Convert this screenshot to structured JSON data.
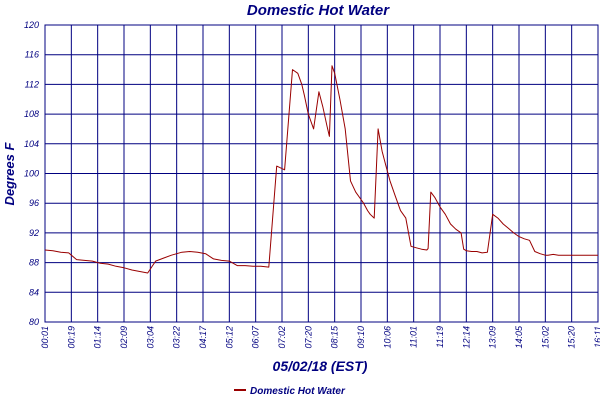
{
  "chart_data": {
    "type": "line",
    "title": "Domestic Hot Water",
    "xlabel": "05/02/18 (EST)",
    "ylabel": "Degrees F",
    "ylim": [
      80,
      120
    ],
    "y_ticks": [
      80,
      84,
      88,
      92,
      96,
      100,
      104,
      108,
      112,
      116,
      120
    ],
    "x_ticks": [
      "00:01",
      "00:19",
      "01:14",
      "02:09",
      "03:04",
      "03:22",
      "04:17",
      "05:12",
      "06:07",
      "07:02",
      "07:20",
      "08:15",
      "09:10",
      "10:06",
      "11:01",
      "11:19",
      "12:14",
      "13:09",
      "14:05",
      "15:02",
      "15:20",
      "16:11"
    ],
    "grid": true,
    "line_color": "#990000",
    "grid_color": "#000080",
    "legend_position": "bottom-center",
    "series": [
      {
        "name": "Domestic Hot Water",
        "x": [
          0,
          0.3,
          0.6,
          0.9,
          1.2,
          1.5,
          1.8,
          2.1,
          2.4,
          2.7,
          3.0,
          3.3,
          3.6,
          3.9,
          4.2,
          4.5,
          4.8,
          5.0,
          5.2,
          5.5,
          5.8,
          6.1,
          6.4,
          6.7,
          7.0,
          7.3,
          7.6,
          7.9,
          8.2,
          8.5,
          8.8,
          9.1,
          9.4,
          9.6,
          9.75,
          9.85,
          10.0,
          10.2,
          10.4,
          10.55,
          10.7,
          10.8,
          10.9,
          11.0,
          11.2,
          11.4,
          11.6,
          11.8,
          12.0,
          12.1,
          12.25,
          12.35,
          12.5,
          12.65,
          12.8,
          12.95,
          13.1,
          13.3,
          13.5,
          13.7,
          13.9,
          14.1,
          14.3,
          14.5,
          14.55,
          14.65,
          14.8,
          15.0,
          15.2,
          15.4,
          15.6,
          15.8,
          15.9,
          16.0,
          16.2,
          16.4,
          16.6,
          16.8,
          17.0,
          17.2,
          17.4,
          17.6,
          17.8,
          18.0,
          18.2,
          18.4,
          18.6,
          18.8,
          19.0,
          19.1,
          19.3,
          19.5,
          19.7,
          19.9,
          20.1,
          20.3,
          20.5,
          20.7,
          21.0
        ],
        "y": [
          89.7,
          89.6,
          89.4,
          89.3,
          88.4,
          88.3,
          88.2,
          87.9,
          87.8,
          87.5,
          87.3,
          87.0,
          86.8,
          86.6,
          88.2,
          88.6,
          89.0,
          89.2,
          89.4,
          89.5,
          89.4,
          89.2,
          88.5,
          88.3,
          88.2,
          87.6,
          87.6,
          87.5,
          87.5,
          87.4,
          101.0,
          100.5,
          114.0,
          113.5,
          112.0,
          110.5,
          108.0,
          106.0,
          111.0,
          109.0,
          106.5,
          105.0,
          114.5,
          113.5,
          110.0,
          106.0,
          99.0,
          97.5,
          96.5,
          96.0,
          95.0,
          94.5,
          94.0,
          106.0,
          103.0,
          101.0,
          99.0,
          97.0,
          95.0,
          94.0,
          90.2,
          90.0,
          89.8,
          89.7,
          89.9,
          97.5,
          96.8,
          95.5,
          94.5,
          93.2,
          92.5,
          92.0,
          89.8,
          89.6,
          89.5,
          89.5,
          89.3,
          89.4,
          94.5,
          94.0,
          93.2,
          92.6,
          92.0,
          91.5,
          91.2,
          91.0,
          89.5,
          89.2,
          89.0,
          89.0,
          89.1,
          89.0,
          89.0,
          89.0,
          89.0,
          89.0,
          89.0,
          89.0,
          89.0
        ]
      }
    ]
  }
}
